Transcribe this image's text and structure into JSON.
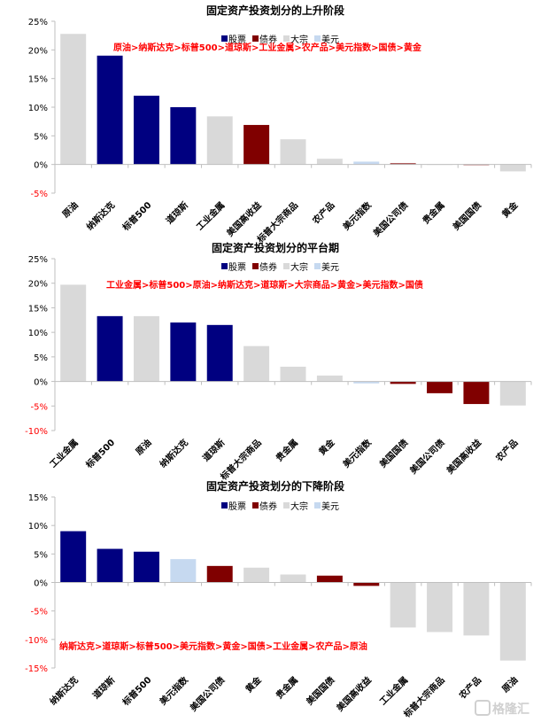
{
  "colors": {
    "股票": "#000080",
    "债券": "#800000",
    "大宗": "#d9d9d9",
    "美元": "#c6d9f0"
  },
  "legend": [
    "股票",
    "债券",
    "大宗",
    "美元"
  ],
  "watermark": "格隆汇",
  "chart_data": [
    {
      "type": "bar",
      "title": "固定资产投资划分的上升阶段",
      "annotation": "原油>纳斯达克>标普500>道琼斯>工业金属>农产品>美元指数>国债>黄金",
      "ylim": [
        -5,
        25
      ],
      "yticks": [
        "-5%",
        "0%",
        "5%",
        "10%",
        "15%",
        "20%",
        "25%"
      ],
      "ytick_values": [
        -5,
        0,
        5,
        10,
        15,
        20,
        25
      ],
      "legend_position": "top-center",
      "categories": [
        "原油",
        "纳斯达克",
        "标普500",
        "道琼斯",
        "工业金属",
        "美国高收益",
        "标普大宗商品",
        "农产品",
        "美元指数",
        "美国公司债",
        "贵金属",
        "美国国债",
        "黄金"
      ],
      "groups": [
        "大宗",
        "股票",
        "股票",
        "股票",
        "大宗",
        "债券",
        "大宗",
        "大宗",
        "美元",
        "债券",
        "大宗",
        "债券",
        "大宗"
      ],
      "values": [
        22.8,
        19.0,
        12.0,
        10.0,
        8.4,
        6.9,
        4.4,
        1.0,
        0.5,
        0.2,
        0.0,
        0.05,
        -1.2
      ]
    },
    {
      "type": "bar",
      "title": "固定资产投资划分的平台期",
      "annotation": "工业金属>标普500>原油>纳斯达克>道琼斯>大宗商品>黄金>美元指数>国债",
      "ylim": [
        -10,
        25
      ],
      "yticks": [
        "-10%",
        "-5%",
        "0%",
        "5%",
        "10%",
        "15%",
        "20%",
        "25%"
      ],
      "ytick_values": [
        -10,
        -5,
        0,
        5,
        10,
        15,
        20,
        25
      ],
      "legend_position": "top-center",
      "categories": [
        "工业金属",
        "标普500",
        "原油",
        "纳斯达克",
        "道琼斯",
        "标普大宗商品",
        "贵金属",
        "黄金",
        "美元指数",
        "美国国债",
        "美国公司债",
        "美国高收益",
        "农产品"
      ],
      "groups": [
        "大宗",
        "股票",
        "大宗",
        "股票",
        "股票",
        "大宗",
        "大宗",
        "大宗",
        "美元",
        "债券",
        "债券",
        "债券",
        "大宗"
      ],
      "values": [
        19.7,
        13.3,
        13.3,
        12.0,
        11.5,
        7.2,
        3.0,
        1.2,
        -0.4,
        -0.5,
        -2.4,
        -4.6,
        -4.9
      ]
    },
    {
      "type": "bar",
      "title": "固定资产投资划分的下降阶段",
      "annotation": "纳斯达克>道琼斯>标普500>美元指数>黄金>国债>工业金属>农产品>原油",
      "ylim": [
        -15,
        15
      ],
      "yticks": [
        "-15%",
        "-10%",
        "-5%",
        "0%",
        "5%",
        "10%",
        "15%"
      ],
      "ytick_values": [
        -15,
        -10,
        -5,
        0,
        5,
        10,
        15
      ],
      "legend_position": "top-center",
      "categories": [
        "纳斯达克",
        "道琼斯",
        "标普500",
        "美元指数",
        "美国公司债",
        "黄金",
        "贵金属",
        "美国国债",
        "美国高收益",
        "工业金属",
        "标普大宗商品",
        "农产品",
        "原油"
      ],
      "groups": [
        "股票",
        "股票",
        "股票",
        "美元",
        "债券",
        "大宗",
        "大宗",
        "债券",
        "债券",
        "大宗",
        "大宗",
        "大宗",
        "大宗"
      ],
      "values": [
        9.0,
        5.9,
        5.4,
        4.1,
        2.9,
        2.6,
        1.4,
        1.2,
        -0.6,
        -7.9,
        -8.7,
        -9.3,
        -13.7
      ]
    }
  ]
}
